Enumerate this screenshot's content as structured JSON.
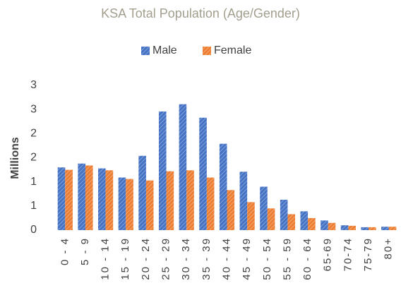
{
  "chart_data": {
    "type": "bar",
    "title": "KSA Total Population (Age/Gender)",
    "y_label": "Millions",
    "categories": [
      "0 - 4",
      "5 - 9",
      "10 - 14",
      "15 - 19",
      "20 - 24",
      "25 - 29",
      "30 - 34",
      "35 - 39",
      "40 - 44",
      "45 - 49",
      "50 - 54",
      "55 - 59",
      "60 - 64",
      "65-69",
      "70-74",
      "75-79",
      "80+"
    ],
    "series": [
      {
        "name": "Male",
        "color": "#4472c4",
        "values": [
          1.3,
          1.38,
          1.28,
          1.09,
          1.54,
          2.46,
          2.61,
          2.33,
          1.79,
          1.21,
          0.9,
          0.63,
          0.39,
          0.2,
          0.1,
          0.06,
          0.07
        ]
      },
      {
        "name": "Female",
        "color": "#ed7d31",
        "values": [
          1.25,
          1.34,
          1.24,
          1.06,
          1.03,
          1.22,
          1.24,
          1.09,
          0.83,
          0.58,
          0.45,
          0.33,
          0.25,
          0.15,
          0.09,
          0.06,
          0.07
        ]
      }
    ],
    "ylim": [
      0,
      3
    ],
    "yticks": [
      0,
      {
        "value": 0.5,
        "label": "1"
      },
      1,
      {
        "value": 1.5,
        "label": "2"
      },
      2,
      {
        "value": 2.5,
        "label": "3"
      },
      3
    ],
    "legend": "top",
    "grid": false
  }
}
